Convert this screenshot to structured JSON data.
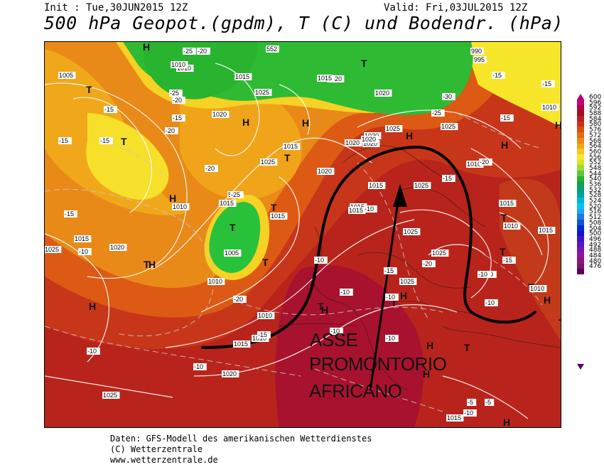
{
  "header": {
    "init": "Init : Tue,30JUN2015 12Z",
    "valid": "Valid: Fri,03JUL2015 12Z",
    "title": "500 hPa Geopot.(gpdm), T (C) und Bodendr. (hPa)"
  },
  "colorbar": {
    "labels": [
      "600",
      "596",
      "592",
      "588",
      "584",
      "580",
      "576",
      "572",
      "568",
      "564",
      "560",
      "556",
      "552",
      "548",
      "544",
      "540",
      "536",
      "532",
      "528",
      "524",
      "520",
      "516",
      "512",
      "508",
      "504",
      "500",
      "496",
      "492",
      "488",
      "484",
      "480",
      "476"
    ],
    "colors": [
      "#c4007a",
      "#b80046",
      "#9e1020",
      "#b22222",
      "#c83214",
      "#d94c10",
      "#e36a10",
      "#ea8a14",
      "#f0a818",
      "#f6c81e",
      "#f8e62a",
      "#d2e62e",
      "#a0dc2e",
      "#5ac83a",
      "#28b42e",
      "#14a046",
      "#00a07a",
      "#00a0aa",
      "#00b4dc",
      "#00c8f0",
      "#28a0f0",
      "#1e78e6",
      "#1450dc",
      "#0a28d2",
      "#1414c8",
      "#3c14c8",
      "#5a14c0",
      "#7814b4",
      "#8c14a0",
      "#8c1482",
      "#781464",
      "#5a005a"
    ]
  },
  "map": {
    "highs": [
      "H",
      "H",
      "H",
      "H",
      "H",
      "H",
      "H",
      "H",
      "H",
      "H",
      "H",
      "H",
      "H",
      "H",
      "H"
    ],
    "lows": [
      "T",
      "T",
      "T",
      "T",
      "T",
      "T",
      "T",
      "T",
      "T",
      "T",
      "T",
      "T",
      "T",
      "T",
      "T"
    ],
    "isobar_labels": [
      "1005",
      "1010",
      "1015",
      "1020",
      "1025",
      "1015",
      "1020",
      "1025",
      "1015",
      "1020",
      "1015",
      "1010",
      "1005",
      "1010",
      "1020",
      "1015",
      "1020",
      "1025",
      "1020",
      "1015",
      "1025",
      "1025",
      "1015",
      "1020",
      "1025",
      "1010",
      "1015",
      "1010",
      "1015",
      "990",
      "995",
      "1010",
      "1025",
      "1025",
      "1025",
      "1015",
      "1015",
      "1010",
      "1010",
      "1020",
      "1015",
      "1010",
      "1015",
      "1020",
      "1020",
      "1025",
      "552",
      "552",
      "1010"
    ],
    "temp_labels": [
      "-15",
      "-15",
      "-20",
      "-25",
      "-15",
      "-15",
      "-15",
      "-20",
      "-20",
      "-25",
      "-10",
      "-10",
      "-10",
      "-10",
      "-15",
      "-20",
      "-15",
      "-10",
      "-10",
      "-5",
      "-10",
      "-10",
      "-15",
      "-10",
      "-10",
      "-5",
      "-25",
      "-20",
      "-20",
      "-30",
      "-25",
      "-15",
      "-15",
      "-20",
      "-15",
      "-15",
      "-10",
      "-10",
      "-10"
    ],
    "annotation": [
      "ASSE",
      "PROMONTORIO",
      "AFRICANO"
    ]
  },
  "footer": {
    "line1": "Daten: GFS-Modell des amerikanischen Wetterdienstes",
    "line2": "(C) Wetterzentrale",
    "line3": "www.wetterzentrale.de"
  }
}
